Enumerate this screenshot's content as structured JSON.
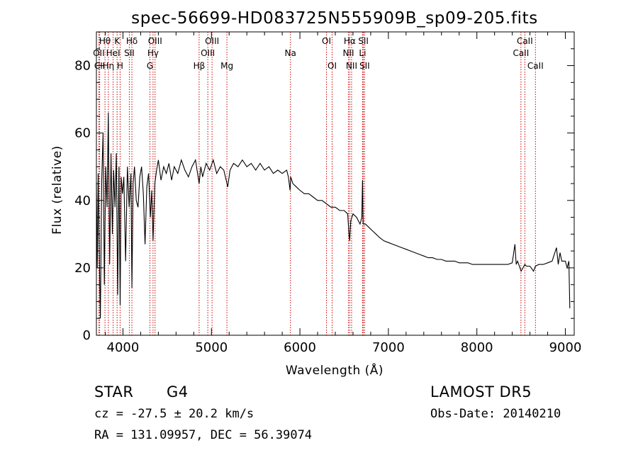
{
  "chart_data": {
    "type": "line",
    "title": "spec-56699-HD083725N555909B_sp09-205.fits",
    "xlabel": "Wavelength (Å)",
    "ylabel": "Flux (relative)",
    "xlim": [
      3700,
      9100
    ],
    "ylim": [
      0,
      90
    ],
    "x_ticks": [
      4000,
      5000,
      6000,
      7000,
      8000,
      9000
    ],
    "y_ticks": [
      0,
      20,
      40,
      60,
      80
    ],
    "grid": false,
    "line_color": "#000000",
    "marker_color": "#cc0000",
    "series": [
      {
        "x": [
          3700,
          3710,
          3720,
          3730,
          3745,
          3760,
          3775,
          3790,
          3805,
          3820,
          3835,
          3850,
          3865,
          3880,
          3895,
          3910,
          3925,
          3940,
          3955,
          3968,
          3980,
          3995,
          4010,
          4030,
          4050,
          4070,
          4090,
          4101,
          4115,
          4130,
          4150,
          4170,
          4190,
          4210,
          4230,
          4250,
          4270,
          4290,
          4310,
          4325,
          4340,
          4360,
          4380,
          4400,
          4430,
          4460,
          4490,
          4520,
          4550,
          4580,
          4620,
          4660,
          4700,
          4740,
          4780,
          4820,
          4861,
          4880,
          4900,
          4940,
          4980,
          5020,
          5060,
          5100,
          5140,
          5167,
          5184,
          5210,
          5250,
          5300,
          5350,
          5400,
          5450,
          5500,
          5550,
          5600,
          5650,
          5700,
          5750,
          5800,
          5850,
          5870,
          5889,
          5896,
          5920,
          5960,
          6000,
          6050,
          6100,
          6150,
          6200,
          6250,
          6300,
          6350,
          6400,
          6450,
          6500,
          6540,
          6555,
          6563,
          6575,
          6600,
          6640,
          6680,
          6700,
          6708,
          6715,
          6740,
          6780,
          6820,
          6860,
          6900,
          6950,
          7000,
          7050,
          7100,
          7150,
          7200,
          7250,
          7300,
          7350,
          7400,
          7450,
          7500,
          7550,
          7600,
          7650,
          7700,
          7750,
          7800,
          7850,
          7900,
          7950,
          8000,
          8050,
          8100,
          8150,
          8200,
          8250,
          8300,
          8350,
          8400,
          8430,
          8445,
          8460,
          8500,
          8542,
          8560,
          8600,
          8640,
          8662,
          8700,
          8750,
          8800,
          8850,
          8900,
          8920,
          8940,
          8960,
          9000,
          9020,
          9040,
          9050
        ],
        "y": [
          45,
          20,
          48,
          28,
          5,
          46,
          60,
          15,
          50,
          38,
          66,
          21,
          54,
          30,
          49,
          38,
          54,
          12,
          50,
          9,
          47,
          42,
          47,
          22,
          50,
          38,
          48,
          14,
          45,
          50,
          40,
          38,
          47,
          50,
          42,
          27,
          44,
          48,
          35,
          43,
          28,
          45,
          49,
          52,
          46,
          50,
          48,
          51,
          46,
          50,
          48,
          52,
          49,
          47,
          50,
          52,
          45,
          50,
          47,
          51,
          49,
          52,
          48,
          50,
          49,
          46,
          44,
          49,
          51,
          50,
          52,
          50,
          51,
          49,
          51,
          49,
          50,
          48,
          49,
          48,
          49,
          47,
          43,
          47,
          45,
          44,
          43,
          42,
          42,
          41,
          40,
          40,
          39,
          38,
          38,
          37,
          37,
          36,
          30,
          28,
          34,
          36,
          35,
          33,
          35,
          46,
          33,
          33,
          32,
          31,
          30,
          29,
          28,
          27.5,
          27,
          26.5,
          26,
          25.5,
          25,
          24.5,
          24,
          23.5,
          23,
          23,
          22.5,
          22.5,
          22,
          22,
          22,
          21.5,
          21.5,
          21.5,
          21,
          21,
          21,
          21,
          21,
          21,
          21,
          21,
          21,
          21.5,
          27,
          21,
          22,
          19,
          21,
          20.5,
          20.5,
          19,
          20.5,
          21,
          21,
          21.5,
          22,
          26,
          21,
          24.5,
          22,
          22,
          20,
          22,
          8
        ]
      }
    ],
    "lines": [
      {
        "label": "Hθ",
        "wavelength": 3797,
        "row": 0
      },
      {
        "label": "OII",
        "wavelength": 3727,
        "row": 1
      },
      {
        "label": "CII",
        "wavelength": 3737,
        "row": 2
      },
      {
        "label": "Hη",
        "wavelength": 3835,
        "row": 2
      },
      {
        "label": "K",
        "wavelength": 3934,
        "row": 0
      },
      {
        "label": "HeI",
        "wavelength": 3889,
        "row": 1
      },
      {
        "label": "H",
        "wavelength": 3968,
        "row": 2
      },
      {
        "label": "Hδ",
        "wavelength": 4101,
        "row": 0
      },
      {
        "label": "SII",
        "wavelength": 4072,
        "row": 1
      },
      {
        "label": "OIII",
        "wavelength": 4363,
        "row": 0
      },
      {
        "label": "Hγ",
        "wavelength": 4340,
        "row": 1
      },
      {
        "label": "G",
        "wavelength": 4305,
        "row": 2
      },
      {
        "label": "Hβ",
        "wavelength": 4861,
        "row": 2
      },
      {
        "label": "OIII",
        "wavelength": 5007,
        "row": 0
      },
      {
        "label": "OIII",
        "wavelength": 4959,
        "row": 1
      },
      {
        "label": "Mg",
        "wavelength": 5175,
        "row": 2
      },
      {
        "label": "Na",
        "wavelength": 5893,
        "row": 1
      },
      {
        "label": "OI",
        "wavelength": 6300,
        "row": 0
      },
      {
        "label": "OI",
        "wavelength": 6364,
        "row": 2
      },
      {
        "label": "Hα",
        "wavelength": 6563,
        "row": 0
      },
      {
        "label": "NII",
        "wavelength": 6548,
        "row": 1
      },
      {
        "label": "NII",
        "wavelength": 6584,
        "row": 2
      },
      {
        "label": "SII",
        "wavelength": 6717,
        "row": 0
      },
      {
        "label": "Li",
        "wavelength": 6708,
        "row": 1
      },
      {
        "label": "SII",
        "wavelength": 6731,
        "row": 2
      },
      {
        "label": "CaII",
        "wavelength": 8542,
        "row": 0
      },
      {
        "label": "CaII",
        "wavelength": 8498,
        "row": 1
      },
      {
        "label": "CaII",
        "wavelength": 8662,
        "row": 2
      }
    ]
  },
  "info": {
    "class": "STAR",
    "subclass": "G4",
    "survey": "LAMOST DR5",
    "cz": "cz = -27.5 ± 20.2 km/s",
    "obs_date": "Obs-Date: 20140210",
    "coords": "RA = 131.09957, DEC =  56.39074"
  }
}
